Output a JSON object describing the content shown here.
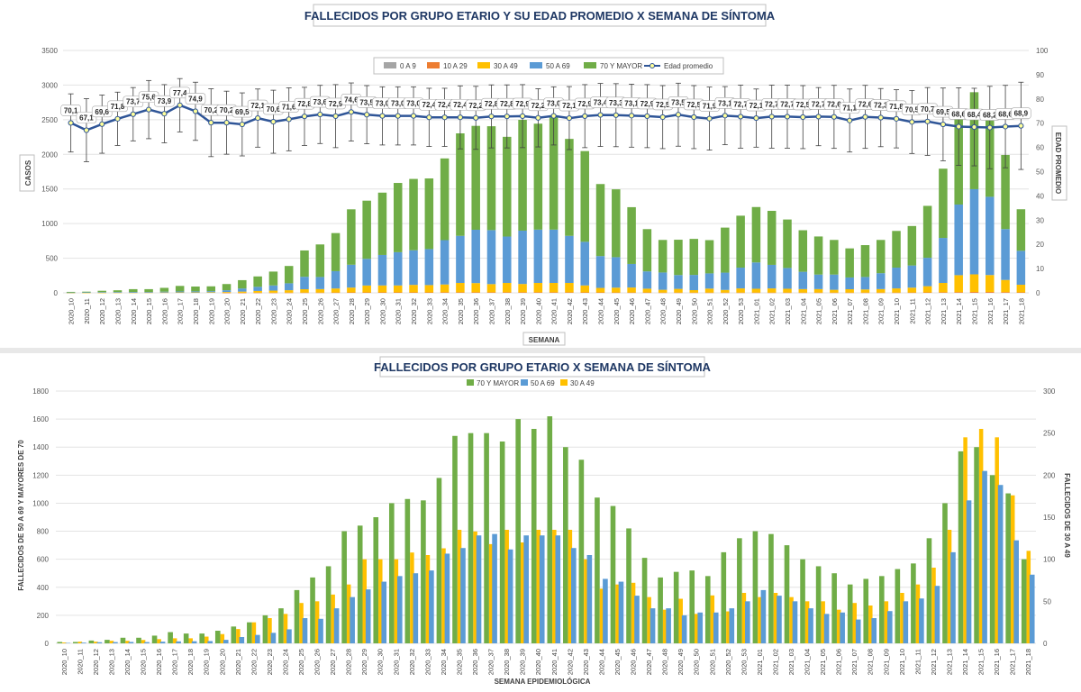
{
  "chart_data": [
    {
      "type": "bar",
      "stacked": true,
      "title": "FALLECIDOS POR GRUPO ETARIO Y SU EDAD PROMEDIO X SEMANA DE SÍNTOMA",
      "xlabel": "SEMANA",
      "ylabel": "CASOS",
      "y2label": "EDAD PROMEDIO",
      "ylim": [
        0,
        3500
      ],
      "y2lim": [
        0,
        100
      ],
      "yticks": [
        "0",
        "500",
        "1000",
        "1500",
        "2000",
        "2500",
        "3000",
        "3500"
      ],
      "y2ticks": [
        "0",
        "10",
        "20",
        "30",
        "40",
        "50",
        "60",
        "70",
        "80",
        "90",
        "100"
      ],
      "legend_position": "top",
      "categories": [
        "2020_10",
        "2020_11",
        "2020_12",
        "2020_13",
        "2020_14",
        "2020_15",
        "2020_16",
        "2020_17",
        "2020_18",
        "2020_19",
        "2020_20",
        "2020_21",
        "2020_22",
        "2020_23",
        "2020_24",
        "2020_25",
        "2020_26",
        "2020_27",
        "2020_28",
        "2020_29",
        "2020_30",
        "2020_31",
        "2020_32",
        "2020_33",
        "2020_34",
        "2020_35",
        "2020_36",
        "2020_37",
        "2020_38",
        "2020_39",
        "2020_40",
        "2020_41",
        "2020_42",
        "2020_43",
        "2020_44",
        "2020_45",
        "2020_46",
        "2020_47",
        "2020_48",
        "2020_49",
        "2020_50",
        "2020_51",
        "2020_52",
        "2020_53",
        "2021_01",
        "2021_02",
        "2021_03",
        "2021_04",
        "2021_05",
        "2021_06",
        "2021_07",
        "2021_08",
        "2021_09",
        "2021_10",
        "2021_11",
        "2021_12",
        "2021_13",
        "2021_14",
        "2021_15",
        "2021_16",
        "2021_17",
        "2021_18"
      ],
      "series": [
        {
          "name": "0 A 9",
          "color": "#a5a5a5",
          "values": [
            0,
            0,
            0,
            0,
            0,
            0,
            0,
            0,
            0,
            0,
            0,
            0,
            0,
            0,
            0,
            0,
            0,
            0,
            0,
            0,
            0,
            0,
            0,
            0,
            0,
            0,
            0,
            0,
            0,
            0,
            0,
            0,
            0,
            0,
            0,
            0,
            0,
            0,
            0,
            0,
            0,
            0,
            0,
            0,
            0,
            0,
            0,
            0,
            0,
            0,
            0,
            0,
            0,
            0,
            0,
            0,
            0,
            0,
            0,
            0,
            0,
            0
          ]
        },
        {
          "name": "10 A 29",
          "color": "#ed7d31",
          "values": [
            0,
            0,
            0,
            0,
            0,
            0,
            0,
            0,
            0,
            0,
            1,
            1,
            2,
            2,
            3,
            4,
            4,
            5,
            6,
            6,
            7,
            7,
            7,
            7,
            8,
            8,
            8,
            8,
            8,
            8,
            8,
            8,
            8,
            7,
            6,
            5,
            5,
            5,
            4,
            4,
            4,
            4,
            4,
            4,
            4,
            4,
            4,
            4,
            4,
            4,
            4,
            4,
            4,
            4,
            5,
            6,
            8,
            10,
            12,
            12,
            10,
            7
          ]
        },
        {
          "name": "30 A 49",
          "color": "#ffc000",
          "values": [
            1,
            2,
            2,
            3,
            3,
            4,
            5,
            6,
            6,
            8,
            11,
            17,
            25,
            30,
            35,
            48,
            50,
            58,
            70,
            100,
            100,
            100,
            108,
            105,
            113,
            135,
            133,
            118,
            135,
            120,
            135,
            135,
            135,
            100,
            65,
            70,
            72,
            55,
            40,
            53,
            35,
            57,
            38,
            60,
            55,
            60,
            55,
            50,
            50,
            40,
            48,
            45,
            50,
            60,
            70,
            90,
            135,
            245,
            255,
            245,
            176,
            110
          ]
        },
        {
          "name": "50 A 69",
          "color": "#5b9bd5",
          "values": [
            3,
            5,
            8,
            9,
            10,
            9,
            12,
            14,
            15,
            16,
            25,
            45,
            60,
            75,
            100,
            180,
            175,
            250,
            330,
            385,
            440,
            480,
            500,
            520,
            640,
            680,
            770,
            780,
            670,
            770,
            770,
            770,
            680,
            630,
            460,
            440,
            340,
            250,
            250,
            200,
            220,
            220,
            250,
            300,
            380,
            340,
            300,
            250,
            210,
            220,
            170,
            180,
            230,
            300,
            320,
            410,
            650,
            1020,
            1230,
            1130,
            735,
            490
          ]
        },
        {
          "name": "70 Y MAYOR",
          "color": "#70ad47",
          "values": [
            10,
            10,
            20,
            25,
            40,
            40,
            55,
            80,
            70,
            70,
            90,
            120,
            150,
            200,
            250,
            380,
            470,
            550,
            800,
            840,
            900,
            1000,
            1030,
            1020,
            1180,
            1480,
            1500,
            1500,
            1440,
            1600,
            1530,
            1620,
            1400,
            1310,
            1040,
            980,
            820,
            610,
            470,
            510,
            520,
            480,
            650,
            750,
            800,
            780,
            700,
            600,
            550,
            500,
            420,
            460,
            480,
            530,
            570,
            750,
            1000,
            1370,
            1400,
            1200,
            1070,
            600
          ]
        }
      ],
      "line_series": {
        "name": "Edad promedio",
        "color": "#2f5597",
        "axis": "y2",
        "values": [
          70.1,
          67.1,
          69.6,
          71.8,
          73.7,
          75.6,
          73.9,
          77.4,
          74.9,
          70.2,
          70.2,
          69.5,
          72.1,
          70.6,
          71.6,
          72.8,
          73.6,
          72.9,
          74.6,
          73.5,
          73.0,
          73.0,
          73.0,
          72.4,
          72.4,
          72.4,
          72.2,
          72.8,
          72.8,
          72.9,
          72.2,
          73.0,
          72.1,
          72.9,
          73.4,
          73.3,
          73.1,
          72.9,
          72.5,
          73.5,
          72.5,
          71.9,
          73.1,
          72.7,
          72.1,
          72.7,
          72.7,
          72.5,
          72.7,
          72.6,
          71.1,
          72.6,
          72.3,
          71.8,
          70.5,
          70.7,
          69.5,
          68.6,
          68.4,
          68.2,
          68.6,
          68.9
        ],
        "labels": [
          "70,1",
          "67,1",
          "69,6",
          "71,8",
          "73,7",
          "75,6",
          "73,9",
          "77,4",
          "74,9",
          "70,2",
          "70,2",
          "69,5",
          "72,1",
          "70,6",
          "71,6",
          "72,8",
          "73,6",
          "72,9",
          "74,6",
          "73,5",
          "73,0",
          "73,0",
          "73,0",
          "72,4",
          "72,4",
          "72,4",
          "72,2",
          "72,8",
          "72,8",
          "72,9",
          "72,2",
          "73,0",
          "72,1",
          "72,9",
          "73,4",
          "73,3",
          "73,1",
          "72,9",
          "72,5",
          "73,5",
          "72,5",
          "71,9",
          "73,1",
          "72,7",
          "72,1",
          "72,7",
          "72,7",
          "72,5",
          "72,7",
          "72,6",
          "71,1",
          "72,6",
          "72,3",
          "71,8",
          "70,5",
          "70,7",
          "69,5",
          "68,6",
          "68,4",
          "68,2",
          "68,6",
          "68,9"
        ]
      },
      "error_bars": {
        "axis": "y2",
        "spread": [
          12,
          13,
          12,
          11,
          11,
          12,
          12,
          11,
          12,
          14,
          13,
          13,
          12,
          13,
          13,
          12,
          12,
          13,
          12,
          12,
          12,
          12,
          12,
          12,
          12,
          13,
          13,
          13,
          13,
          13,
          12,
          12,
          13,
          13,
          13,
          13,
          13,
          13,
          13,
          13,
          13,
          13,
          12,
          13,
          12,
          13,
          13,
          13,
          12,
          13,
          13,
          13,
          12,
          12,
          13,
          14,
          15,
          16,
          16,
          17,
          17,
          18
        ]
      }
    },
    {
      "type": "bar",
      "title": "FALLECIDOS POR GRUPO ETARIO X SEMANA DE SÍNTOMA",
      "xlabel": "SEMANA EPIDEMIOLÓGICA",
      "ylabel": "FALLECIDOS DE 50 A 69 Y MAYORES DE 70",
      "y2label": "FALLECIDOS DE 30 A 49",
      "ylim": [
        0,
        1800
      ],
      "y2lim": [
        0,
        300
      ],
      "yticks": [
        "0",
        "200",
        "400",
        "600",
        "800",
        "1000",
        "1200",
        "1400",
        "1600",
        "1800"
      ],
      "y2ticks": [
        "0",
        "50",
        "100",
        "150",
        "200",
        "250",
        "300"
      ],
      "legend_position": "top",
      "series_names": [
        "70 Y MAYOR",
        "50 A 69",
        "30 A 49"
      ],
      "colors": [
        "#70ad47",
        "#5b9bd5",
        "#ffc000"
      ],
      "note": "Same weekly values as the first chart, drawn as grouped bars; 30 A 49 on the secondary axis."
    }
  ]
}
